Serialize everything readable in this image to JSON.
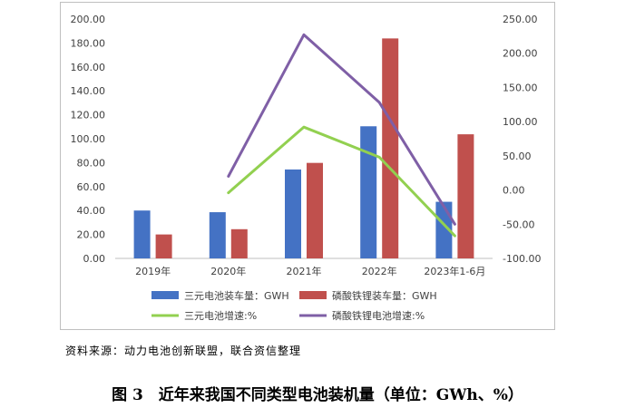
{
  "chart_data": {
    "type": "bar+line",
    "categories": [
      "2019年",
      "2020年",
      "2021年",
      "2022年",
      "2023年1-6月"
    ],
    "left_axis": {
      "ylim": [
        0,
        200
      ],
      "ticks": [
        "0.00",
        "20.00",
        "40.00",
        "60.00",
        "80.00",
        "100.00",
        "120.00",
        "140.00",
        "160.00",
        "180.00",
        "200.00"
      ]
    },
    "right_axis": {
      "ylim": [
        -100,
        250
      ],
      "ticks": [
        "-100.00",
        "-50.00",
        "0.00",
        "50.00",
        "100.00",
        "150.00",
        "200.00",
        "250.00"
      ]
    },
    "bar_series": [
      {
        "name": "三元电池装车量：GWH",
        "color": "#4472c4",
        "values": [
          40.0,
          38.6,
          74.3,
          110.4,
          47.3
        ]
      },
      {
        "name": "磷酸铁锂装车量：GWH",
        "color": "#c0504d",
        "values": [
          20.0,
          24.4,
          79.8,
          183.8,
          103.7
        ]
      }
    ],
    "line_series": [
      {
        "name": "三元电池增速:%",
        "color": "#92d050",
        "values": [
          null,
          -4.0,
          92.0,
          48.0,
          -67.0
        ]
      },
      {
        "name": "磷酸铁锂电池增速:%",
        "color": "#7f5fa6",
        "values": [
          null,
          20.0,
          227.0,
          128.0,
          -50.0
        ]
      }
    ],
    "grid": false,
    "legend_position": "bottom"
  },
  "source_text": "资料来源：动力电池创新联盟，联合资信整理",
  "caption_text": "图 3　近年来我国不同类型电池装机量（单位：GWh、%）"
}
